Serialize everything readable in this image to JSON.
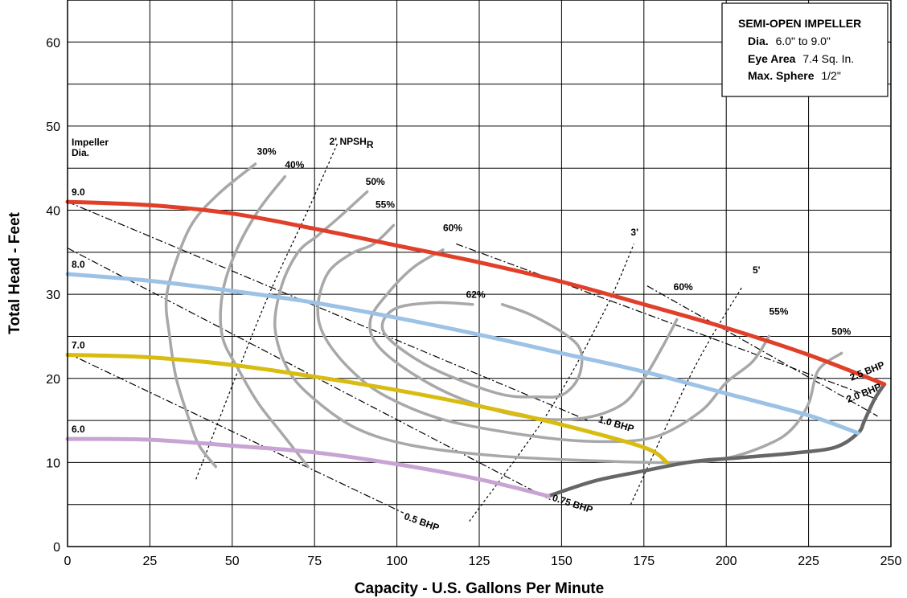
{
  "chart_data": {
    "type": "line",
    "xlabel": "Capacity - U.S. Gallons Per Minute",
    "ylabel": "Total Head - Feet",
    "xlim": [
      0,
      250
    ],
    "ylim": [
      0,
      65
    ],
    "x_ticks": [
      "0",
      "25",
      "50",
      "75",
      "100",
      "125",
      "150",
      "175",
      "200",
      "225",
      "250"
    ],
    "y_ticks": [
      "0",
      "10",
      "20",
      "30",
      "40",
      "50",
      "60"
    ],
    "grid": true,
    "info_box": {
      "title": "SEMI-OPEN IMPELLER",
      "lines": [
        {
          "label": "Dia.",
          "value": "6.0\" to 9.0\""
        },
        {
          "label": "Eye Area",
          "value": "7.4 Sq. In."
        },
        {
          "label": "Max. Sphere",
          "value": "1/2\""
        }
      ]
    },
    "impeller_header": [
      "Impeller",
      "Dia."
    ],
    "impeller_curves": [
      {
        "name": "9.0",
        "color": "#e0402a",
        "points": [
          [
            0,
            41
          ],
          [
            25,
            40.6
          ],
          [
            50,
            39.6
          ],
          [
            75,
            37.8
          ],
          [
            100,
            35.8
          ],
          [
            125,
            33.8
          ],
          [
            150,
            31.5
          ],
          [
            175,
            28.8
          ],
          [
            200,
            26
          ],
          [
            225,
            22.8
          ],
          [
            248,
            19.3
          ]
        ]
      },
      {
        "name": "8.0",
        "color": "#9cc2e6",
        "points": [
          [
            0,
            32.4
          ],
          [
            25,
            31.6
          ],
          [
            50,
            30.4
          ],
          [
            75,
            29
          ],
          [
            100,
            27.2
          ],
          [
            125,
            25.2
          ],
          [
            150,
            23
          ],
          [
            175,
            20.8
          ],
          [
            200,
            18.2
          ],
          [
            225,
            15.6
          ],
          [
            240,
            13.5
          ]
        ]
      },
      {
        "name": "7.0",
        "color": "#d9bc10",
        "points": [
          [
            0,
            22.8
          ],
          [
            25,
            22.5
          ],
          [
            50,
            21.6
          ],
          [
            75,
            20.2
          ],
          [
            100,
            18.6
          ],
          [
            125,
            16.7
          ],
          [
            150,
            14.5
          ],
          [
            175,
            11.8
          ],
          [
            182,
            10
          ]
        ]
      },
      {
        "name": "6.0",
        "color": "#c8a4d4",
        "points": [
          [
            0,
            12.8
          ],
          [
            25,
            12.7
          ],
          [
            50,
            12
          ],
          [
            75,
            11.2
          ],
          [
            100,
            9.8
          ],
          [
            125,
            8
          ],
          [
            146,
            6
          ]
        ]
      }
    ],
    "runout_curve": {
      "color": "#666666",
      "points": [
        [
          146,
          6
        ],
        [
          160,
          7.8
        ],
        [
          175,
          9
        ],
        [
          190,
          10.1
        ],
        [
          205,
          10.6
        ],
        [
          220,
          11.1
        ],
        [
          233,
          11.8
        ],
        [
          240,
          13.5
        ],
        [
          242,
          15
        ],
        [
          245,
          17.5
        ],
        [
          248,
          19.3
        ]
      ]
    },
    "efficiency_curves": [
      {
        "label": "30%",
        "points": [
          [
            57,
            45.5
          ],
          [
            46,
            42
          ],
          [
            38,
            38.5
          ],
          [
            33,
            34
          ],
          [
            30,
            29.5
          ],
          [
            31,
            25
          ],
          [
            33,
            20
          ],
          [
            37,
            15
          ],
          [
            40,
            12
          ],
          [
            45,
            9.5
          ]
        ]
      },
      {
        "label": "40%",
        "points": [
          [
            66,
            44
          ],
          [
            58,
            40
          ],
          [
            51,
            35
          ],
          [
            47,
            30
          ],
          [
            47,
            25
          ],
          [
            52,
            21
          ],
          [
            58,
            17
          ],
          [
            65,
            13.5
          ],
          [
            73,
            9.5
          ]
        ]
      },
      {
        "label": "50%",
        "points": [
          [
            91,
            42.2
          ],
          [
            82,
            39
          ],
          [
            76,
            37
          ],
          [
            70,
            35
          ],
          [
            65,
            31
          ],
          [
            63,
            26
          ],
          [
            67,
            21
          ],
          [
            75,
            17.5
          ],
          [
            88,
            14
          ],
          [
            105,
            12
          ],
          [
            130,
            10.8
          ],
          [
            160,
            10.2
          ],
          [
            185,
            10
          ],
          [
            200,
            10.5
          ],
          [
            213,
            12.2
          ],
          [
            220,
            14
          ],
          [
            225,
            17
          ],
          [
            228,
            21
          ],
          [
            235,
            23
          ]
        ]
      },
      {
        "label": "55%",
        "points": [
          [
            99,
            38.2
          ],
          [
            93,
            36
          ],
          [
            86,
            34.8
          ],
          [
            79,
            32.5
          ],
          [
            76,
            28.5
          ],
          [
            78,
            25
          ],
          [
            86,
            21
          ],
          [
            97,
            17.8
          ],
          [
            115,
            15
          ],
          [
            140,
            13.2
          ],
          [
            160,
            12.5
          ],
          [
            178,
            13
          ],
          [
            192,
            16
          ],
          [
            200,
            19.5
          ],
          [
            208,
            22
          ],
          [
            213,
            25
          ]
        ]
      },
      {
        "label": "60%",
        "points": [
          [
            114,
            35.3
          ],
          [
            105,
            33.2
          ],
          [
            97,
            30
          ],
          [
            92,
            27
          ],
          [
            94,
            24
          ],
          [
            105,
            20.5
          ],
          [
            120,
            17.5
          ],
          [
            138,
            15.5
          ],
          [
            155,
            15.2
          ],
          [
            168,
            16.8
          ],
          [
            175,
            20
          ],
          [
            181,
            24
          ],
          [
            185,
            27
          ]
        ]
      },
      {
        "label": "62%",
        "points": [
          [
            123,
            28.8
          ],
          [
            111,
            29
          ],
          [
            99,
            28.2
          ],
          [
            96,
            25.5
          ],
          [
            107,
            22
          ],
          [
            121,
            19.5
          ],
          [
            133,
            18
          ],
          [
            143,
            17.8
          ],
          [
            150,
            18
          ],
          [
            155,
            20
          ],
          [
            156,
            23
          ],
          [
            152,
            25
          ],
          [
            141,
            27.5
          ],
          [
            132,
            28.8
          ]
        ]
      }
    ],
    "efficiency_label_positions": [
      {
        "label": "30%",
        "at": [
          57.5,
          46.6
        ]
      },
      {
        "label": "40%",
        "at": [
          66,
          45
        ]
      },
      {
        "label": "50%",
        "at": [
          90.5,
          43
        ]
      },
      {
        "label": "55%",
        "at": [
          93.5,
          40.3
        ]
      },
      {
        "label": "60%",
        "at": [
          114,
          37.5
        ]
      },
      {
        "label": "62%",
        "at": [
          121,
          29.6
        ]
      },
      {
        "label": "60%",
        "at": [
          184,
          30.5
        ]
      },
      {
        "label": "55%",
        "at": [
          213,
          27.6
        ]
      },
      {
        "label": "50%",
        "at": [
          232,
          25.2
        ]
      }
    ],
    "npsh_curves": [
      {
        "label": "2' NPSH",
        "subscript": "R",
        "label_at": [
          79.5,
          47.8
        ],
        "points": [
          [
            39,
            8
          ],
          [
            59,
            28
          ],
          [
            73,
            40
          ],
          [
            82,
            48
          ]
        ]
      },
      {
        "label": "3'",
        "label_at": [
          171,
          37
        ],
        "points": [
          [
            122,
            3
          ],
          [
            146,
            16
          ],
          [
            163,
            28
          ],
          [
            172,
            36
          ]
        ]
      },
      {
        "label": "5'",
        "label_at": [
          208,
          32.5
        ],
        "points": [
          [
            171,
            5
          ],
          [
            190,
            21
          ],
          [
            205,
            31
          ]
        ]
      }
    ],
    "bhp_lines": [
      {
        "label": "0.5 BHP",
        "label_at": [
          102,
          3.3
        ],
        "label_angle": 20,
        "points": [
          [
            0,
            23
          ],
          [
            102,
            4
          ]
        ]
      },
      {
        "label": "0.75 BHP",
        "label_at": [
          147,
          5.5
        ],
        "label_angle": 18,
        "points": [
          [
            0,
            35.5
          ],
          [
            147,
            5.5
          ]
        ]
      },
      {
        "label": "1.0 BHP",
        "label_at": [
          161,
          14.8
        ],
        "label_angle": 16,
        "points": [
          [
            0,
            41
          ],
          [
            158,
            15
          ]
        ]
      },
      {
        "label": "2.0 BHP",
        "label_at": [
          237,
          17.1
        ],
        "label_angle": -22,
        "points": [
          [
            176,
            31
          ],
          [
            246,
            15.5
          ]
        ]
      },
      {
        "label": "2.5 BHP",
        "label_at": [
          238,
          19.7
        ],
        "label_angle": -22,
        "points": [
          [
            118,
            36
          ],
          [
            246,
            17.5
          ]
        ]
      }
    ]
  }
}
